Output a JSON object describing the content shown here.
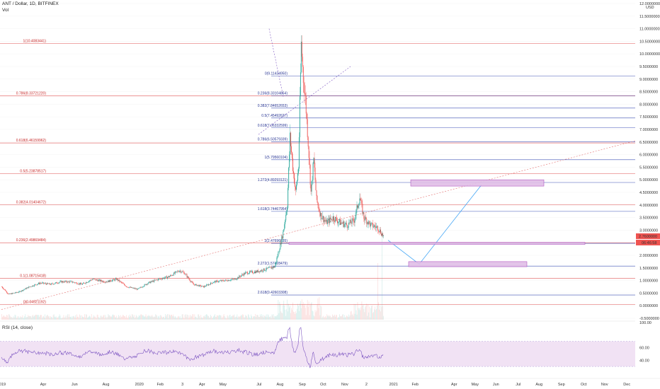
{
  "header": {
    "symbol_line": "ANT / Dollar, 1D, BITFINEX",
    "vol_label": "Vol",
    "rsi_label": "RSI (14, close)"
  },
  "colors": {
    "up": "#26a69a",
    "down": "#ef5350",
    "fib_left": "#e57373",
    "fib_right": "#3f51b5",
    "rsi_line": "#7e57c2",
    "rsi_band": "#e1bee7",
    "box_fill": "#e1bee7",
    "box_stroke": "#ab47bc",
    "arrow": "#42a5f5",
    "price_tag": "#ef5350"
  },
  "chart_data": {
    "type": "candlestick",
    "price_axis": {
      "ylim": [
        -0.6,
        12.2
      ],
      "ticks": [
        "12.0000000",
        "11.5000000",
        "11.0000000",
        "10.5000000",
        "10.0000000",
        "9.5000000",
        "9.0000000",
        "8.5000000",
        "8.0000000",
        "7.5000000",
        "7.0000000",
        "6.5000000",
        "6.0000000",
        "5.5000000",
        "5.0000000",
        "4.5000000",
        "4.0000000",
        "3.5000000",
        "3.0000000",
        "2.5000000",
        "2.0000000",
        "1.5000000",
        "1.0000000",
        "0.5000000",
        "0.0000000",
        "-0.5000000"
      ],
      "tick_values": [
        12,
        11.5,
        11,
        10.5,
        10,
        9.5,
        9,
        8.5,
        8,
        7.5,
        7,
        6.5,
        6,
        5.5,
        5,
        4.5,
        4,
        3.5,
        3,
        2.5,
        2,
        1.5,
        1,
        0.5,
        0,
        -0.5
      ],
      "unit": "USD"
    },
    "time_axis": {
      "labels": [
        "2019",
        "Apr",
        "Jun",
        "Aug",
        "2020",
        "Feb",
        "3",
        "Apr",
        "May",
        "Jul",
        "Aug",
        "Sep",
        "Oct",
        "Nov",
        "2",
        "2021",
        "Feb",
        "Apr",
        "May",
        "Jun",
        "Jul",
        "Aug",
        "Sep",
        "Oct",
        "Nov",
        "Dec"
      ],
      "label_index": [
        0,
        60,
        105,
        150,
        198,
        228,
        260,
        288,
        318,
        370,
        400,
        432,
        462,
        493,
        524,
        563,
        594,
        650,
        680,
        710,
        742,
        772,
        804,
        836,
        866,
        898
      ]
    },
    "candles": [],
    "last_price": "2.7600000",
    "countdown": "06:46:58",
    "fib_left": [
      {
        "label": "1(10.4083441)",
        "value": 10.408
      },
      {
        "label": "0.786(8.33721220)",
        "value": 8.337
      },
      {
        "label": "0.618(6.46159962)",
        "value": 6.462
      },
      {
        "label": "0.5(5.23878517)",
        "value": 5.239
      },
      {
        "label": "0.382(4.01404672)",
        "value": 4.014
      },
      {
        "label": "0.236(2.49869484)",
        "value": 2.499
      },
      {
        "label": "0.1(1.08715418)",
        "value": 1.087
      },
      {
        "label": "0(0.04921192)",
        "value": 0.049
      }
    ],
    "fib_right": [
      {
        "label": "0(9.11434950)",
        "value": 9.114
      },
      {
        "label": "0.236(8.33104854)",
        "value": 8.331
      },
      {
        "label": "0.382(7.84652653)",
        "value": 7.847
      },
      {
        "label": "0.5(7.45492627)",
        "value": 7.455
      },
      {
        "label": "0.618(7.06332599)",
        "value": 7.063
      },
      {
        "label": "0.786(6.50579339)",
        "value": 6.506
      },
      {
        "label": "1(5.79560104)",
        "value": 5.796
      },
      {
        "label": "1.272(4.89293121)",
        "value": 4.893
      },
      {
        "label": "1.618(3.74467954)",
        "value": 3.745
      },
      {
        "label": "2(2.47696835)",
        "value": 2.477
      },
      {
        "label": "2.272(1.57428479)",
        "value": 1.574
      },
      {
        "label": "2.618(0.42603308)",
        "value": 0.426
      }
    ],
    "rsi": {
      "ticks": [
        "100.00",
        "60.00",
        "40.00"
      ],
      "tick_values": [
        100,
        60,
        40
      ],
      "band": [
        30,
        70
      ]
    }
  }
}
